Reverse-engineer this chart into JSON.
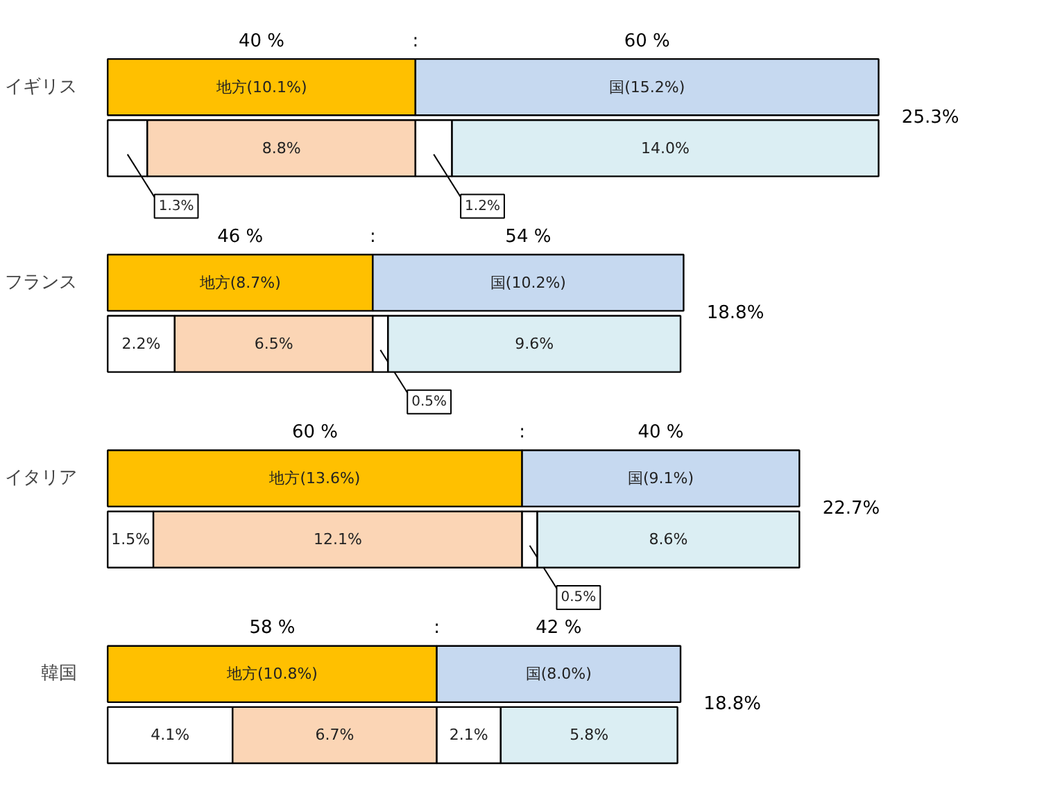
{
  "chart_data": {
    "type": "bar",
    "orientation": "horizontal",
    "stacked": true,
    "categories": [
      "イギリス",
      null,
      "フランス",
      null,
      "イタリア",
      null,
      "韓国",
      null
    ],
    "series": [
      {
        "color": "#ffc000",
        "values": [
          10.1,
          null,
          8.7,
          null,
          13.6,
          null,
          10.8,
          null
        ],
        "value_labels": [
          "地方(10.1%)",
          null,
          "地方(8.7%)",
          null,
          "地方(13.6%)",
          null,
          "地方(10.8%)",
          null
        ]
      },
      {
        "color": "#c6d9f0",
        "values": [
          15.2,
          null,
          10.2,
          null,
          9.1,
          null,
          8.0,
          null
        ],
        "value_labels": [
          "国(15.2%)",
          null,
          "国(10.2%)",
          null,
          "国(9.1%)",
          null,
          "国(8.0%)",
          null
        ]
      },
      {
        "color": "#ffffff",
        "values": [
          null,
          1.3,
          null,
          2.2,
          null,
          1.5,
          null,
          4.1
        ],
        "value_labels": [
          null,
          "1.3%",
          null,
          "2.2%",
          null,
          "1.5%",
          null,
          "4.1%"
        ]
      },
      {
        "color": "#fbd5b5",
        "values": [
          null,
          8.8,
          null,
          6.5,
          null,
          12.1,
          null,
          6.7
        ],
        "value_labels": [
          null,
          "8.8%",
          null,
          "6.5%",
          null,
          "12.1%",
          null,
          "6.7%"
        ]
      },
      {
        "color": "#ffffff",
        "values": [
          null,
          1.2,
          null,
          0.5,
          null,
          0.5,
          null,
          2.1
        ],
        "value_labels": [
          null,
          "1.2%",
          null,
          "0.5%",
          null,
          "0.5%",
          null,
          "2.1%"
        ]
      },
      {
        "color": "#dbeef3",
        "values": [
          null,
          14.0,
          null,
          9.6,
          null,
          8.6,
          null,
          5.8
        ],
        "value_labels": [
          null,
          "14.0%",
          null,
          "9.6%",
          null,
          "8.6%",
          null,
          "5.8%"
        ]
      }
    ],
    "totals": [
      "25.3%",
      null,
      "18.8%",
      null,
      "22.7%",
      null,
      "18.8%",
      null
    ],
    "annotations": [
      "40 %",
      ":",
      "60 %",
      "46 %",
      ":",
      "54 %",
      "60 %",
      ":",
      "40 %",
      "58 %",
      ":",
      "42 %"
    ],
    "grid": false
  }
}
